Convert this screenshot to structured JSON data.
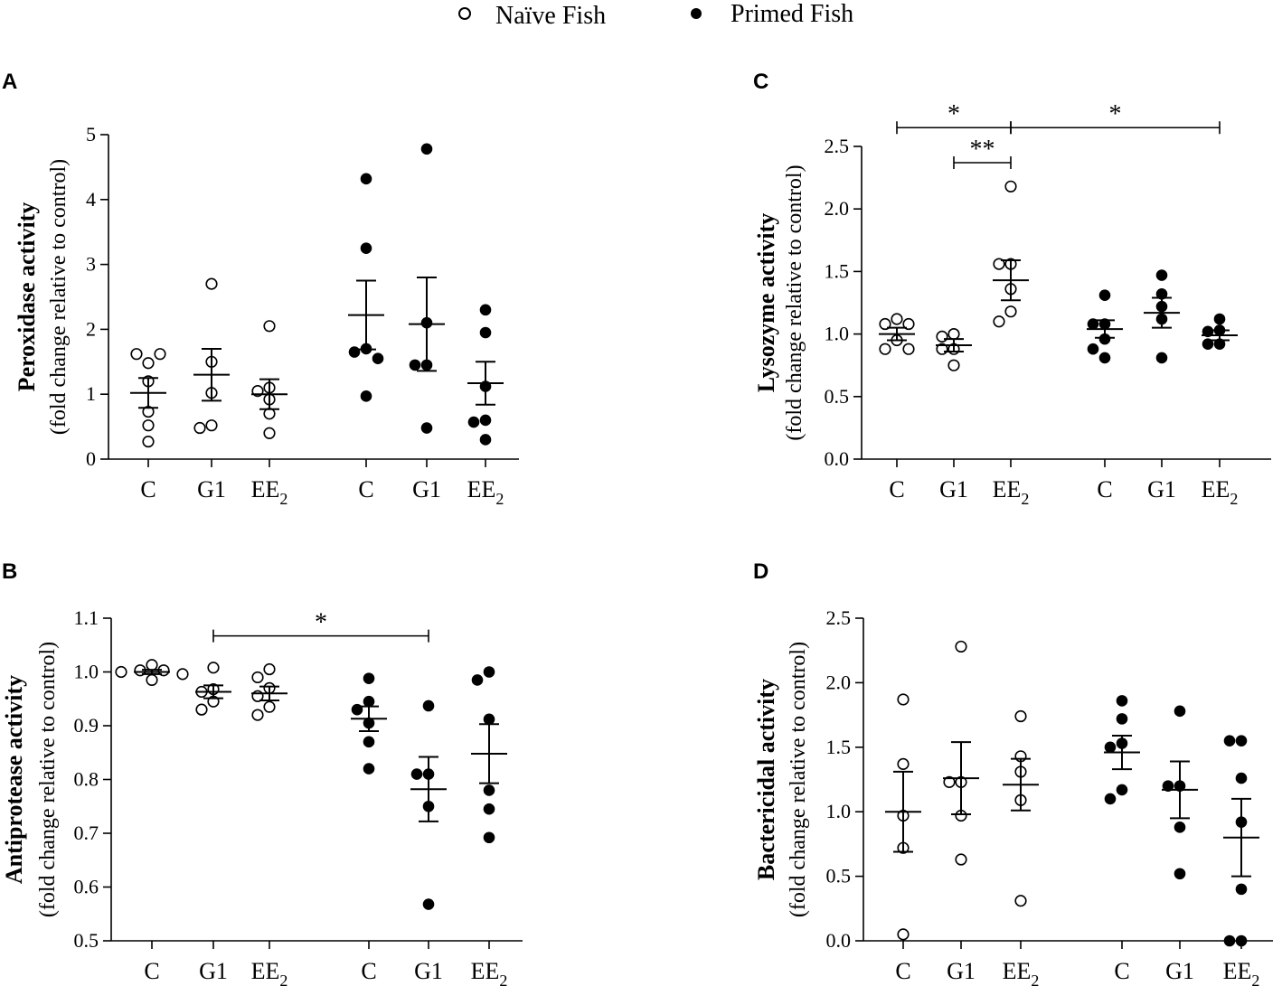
{
  "legend": [
    {
      "label": "Naïve Fish",
      "marker": "open"
    },
    {
      "label": "Primed Fish",
      "marker": "filled"
    }
  ],
  "chart_data": [
    {
      "id": "A",
      "type": "scatter",
      "panel_label": "A",
      "ylabel": "Peroxidase activity",
      "ylabel_sub": "(fold change relative to control)",
      "ylim": [
        0,
        5
      ],
      "yticks": [
        0,
        1,
        2,
        3,
        4,
        5
      ],
      "ytick_labels": [
        "0",
        "1",
        "2",
        "3",
        "4",
        "5"
      ],
      "groups": [
        {
          "label": "C",
          "sub": "",
          "series": "Naïve Fish",
          "mean": 1.02,
          "sem": 0.23,
          "points": [
            1.48,
            1.62,
            1.62,
            1.2,
            0.73,
            0.52,
            0.27
          ]
        },
        {
          "label": "G1",
          "sub": "",
          "series": "Naïve Fish",
          "mean": 1.3,
          "sem": 0.4,
          "points": [
            2.7,
            1.5,
            1.02,
            0.52,
            0.48
          ]
        },
        {
          "label": "EE",
          "sub": "2",
          "series": "Naïve Fish",
          "mean": 1.0,
          "sem": 0.23,
          "points": [
            2.05,
            1.1,
            1.05,
            0.92,
            0.7,
            0.4
          ]
        },
        {
          "label": "C",
          "sub": "",
          "series": "Primed Fish",
          "mean": 2.22,
          "sem": 0.53,
          "points": [
            4.32,
            3.25,
            1.7,
            1.65,
            1.55,
            0.97
          ]
        },
        {
          "label": "G1",
          "sub": "",
          "series": "Primed Fish",
          "mean": 2.08,
          "sem": 0.72,
          "points": [
            4.78,
            2.1,
            1.45,
            1.45,
            0.48
          ]
        },
        {
          "label": "EE",
          "sub": "2",
          "series": "Primed Fish",
          "mean": 1.17,
          "sem": 0.33,
          "points": [
            2.3,
            1.95,
            1.12,
            0.6,
            0.57,
            0.3
          ]
        }
      ],
      "brackets": []
    },
    {
      "id": "B",
      "type": "scatter",
      "panel_label": "B",
      "ylabel": "Antiprotease activity",
      "ylabel_sub": "(fold change relative to control)",
      "ylim": [
        0.5,
        1.1
      ],
      "yticks": [
        0.5,
        0.6,
        0.7,
        0.8,
        0.9,
        1.0,
        1.1
      ],
      "ytick_labels": [
        "0.5",
        "0.6",
        "0.7",
        "0.8",
        "0.9",
        "1.0",
        "1.1"
      ],
      "groups": [
        {
          "label": "C",
          "sub": "",
          "series": "Naïve Fish",
          "mean": 1.0,
          "sem": 0.004,
          "points": [
            1.013,
            1.003,
            1.003,
            1.0,
            0.996,
            0.985
          ]
        },
        {
          "label": "G1",
          "sub": "",
          "series": "Naïve Fish",
          "mean": 0.963,
          "sem": 0.012,
          "points": [
            1.008,
            0.968,
            0.963,
            0.945,
            0.93
          ]
        },
        {
          "label": "EE",
          "sub": "2",
          "series": "Naïve Fish",
          "mean": 0.96,
          "sem": 0.013,
          "points": [
            1.005,
            0.99,
            0.97,
            0.955,
            0.935,
            0.92
          ]
        },
        {
          "label": "C",
          "sub": "",
          "series": "Primed Fish",
          "mean": 0.913,
          "sem": 0.023,
          "points": [
            0.988,
            0.945,
            0.93,
            0.905,
            0.87,
            0.82
          ]
        },
        {
          "label": "G1",
          "sub": "",
          "series": "Primed Fish",
          "mean": 0.782,
          "sem": 0.06,
          "points": [
            0.937,
            0.81,
            0.81,
            0.75,
            0.568
          ]
        },
        {
          "label": "EE",
          "sub": "2",
          "series": "Primed Fish",
          "mean": 0.848,
          "sem": 0.055,
          "points": [
            1.0,
            0.985,
            0.912,
            0.78,
            0.745,
            0.692
          ]
        }
      ],
      "brackets": [
        {
          "from": 1,
          "to": 4,
          "y": 1.067,
          "label": "*"
        }
      ]
    },
    {
      "id": "C",
      "type": "scatter",
      "panel_label": "C",
      "ylabel": "Lysozyme activity",
      "ylabel_sub": "(fold change relative to control)",
      "ylim": [
        0,
        2.5
      ],
      "yticks": [
        0,
        0.5,
        1.0,
        1.5,
        2.0,
        2.5
      ],
      "ytick_labels": [
        "0.0",
        "0.5",
        "1.0",
        "1.5",
        "2.0",
        "2.5"
      ],
      "groups": [
        {
          "label": "C",
          "sub": "",
          "series": "Naïve Fish",
          "mean": 1.0,
          "sem": 0.05,
          "points": [
            1.12,
            1.08,
            1.08,
            0.95,
            0.88,
            0.88
          ]
        },
        {
          "label": "G1",
          "sub": "",
          "series": "Naïve Fish",
          "mean": 0.91,
          "sem": 0.05,
          "points": [
            1.0,
            0.98,
            0.88,
            0.88,
            0.75
          ]
        },
        {
          "label": "EE",
          "sub": "2",
          "series": "Naïve Fish",
          "mean": 1.43,
          "sem": 0.16,
          "points": [
            2.18,
            1.56,
            1.56,
            1.36,
            1.18,
            1.1
          ]
        },
        {
          "label": "C",
          "sub": "",
          "series": "Primed Fish",
          "mean": 1.04,
          "sem": 0.07,
          "points": [
            1.31,
            1.08,
            1.08,
            0.96,
            0.88,
            0.81
          ]
        },
        {
          "label": "G1",
          "sub": "",
          "series": "Primed Fish",
          "mean": 1.17,
          "sem": 0.12,
          "points": [
            1.47,
            1.32,
            1.22,
            1.12,
            0.81
          ]
        },
        {
          "label": "EE",
          "sub": "2",
          "series": "Primed Fish",
          "mean": 0.99,
          "sem": 0.04,
          "points": [
            1.12,
            1.03,
            1.02,
            0.92,
            0.92
          ]
        }
      ],
      "brackets": [
        {
          "from": 0,
          "to": 2,
          "y": 2.65,
          "label": "*"
        },
        {
          "from": 2,
          "to": 5,
          "y": 2.65,
          "label": "*"
        },
        {
          "from": 1,
          "to": 2,
          "y": 2.37,
          "label": "**"
        }
      ]
    },
    {
      "id": "D",
      "type": "scatter",
      "panel_label": "D",
      "ylabel": "Bactericidal activity",
      "ylabel_sub": "(fold change relative to control)",
      "ylim": [
        0,
        2.5
      ],
      "yticks": [
        0,
        0.5,
        1.0,
        1.5,
        2.0,
        2.5
      ],
      "ytick_labels": [
        "0.0",
        "0.5",
        "1.0",
        "1.5",
        "2.0",
        "2.5"
      ],
      "groups": [
        {
          "label": "C",
          "sub": "",
          "series": "Naïve Fish",
          "mean": 1.0,
          "sem": 0.31,
          "points": [
            1.87,
            1.37,
            0.97,
            0.72,
            0.05
          ]
        },
        {
          "label": "G1",
          "sub": "",
          "series": "Naïve Fish",
          "mean": 1.26,
          "sem": 0.28,
          "points": [
            2.28,
            1.23,
            1.23,
            0.97,
            0.63
          ]
        },
        {
          "label": "EE",
          "sub": "2",
          "series": "Naïve Fish",
          "mean": 1.21,
          "sem": 0.2,
          "points": [
            1.74,
            1.43,
            1.31,
            1.09,
            0.31
          ]
        },
        {
          "label": "C",
          "sub": "",
          "series": "Primed Fish",
          "mean": 1.46,
          "sem": 0.13,
          "points": [
            1.86,
            1.72,
            1.53,
            1.5,
            1.17,
            1.1
          ]
        },
        {
          "label": "G1",
          "sub": "",
          "series": "Primed Fish",
          "mean": 1.17,
          "sem": 0.22,
          "points": [
            1.78,
            1.2,
            1.2,
            0.88,
            0.52
          ]
        },
        {
          "label": "EE",
          "sub": "2",
          "series": "Primed Fish",
          "mean": 0.8,
          "sem": 0.3,
          "points": [
            1.55,
            1.55,
            1.26,
            0.92,
            0.4,
            0.0,
            0.0
          ]
        }
      ],
      "brackets": []
    }
  ]
}
